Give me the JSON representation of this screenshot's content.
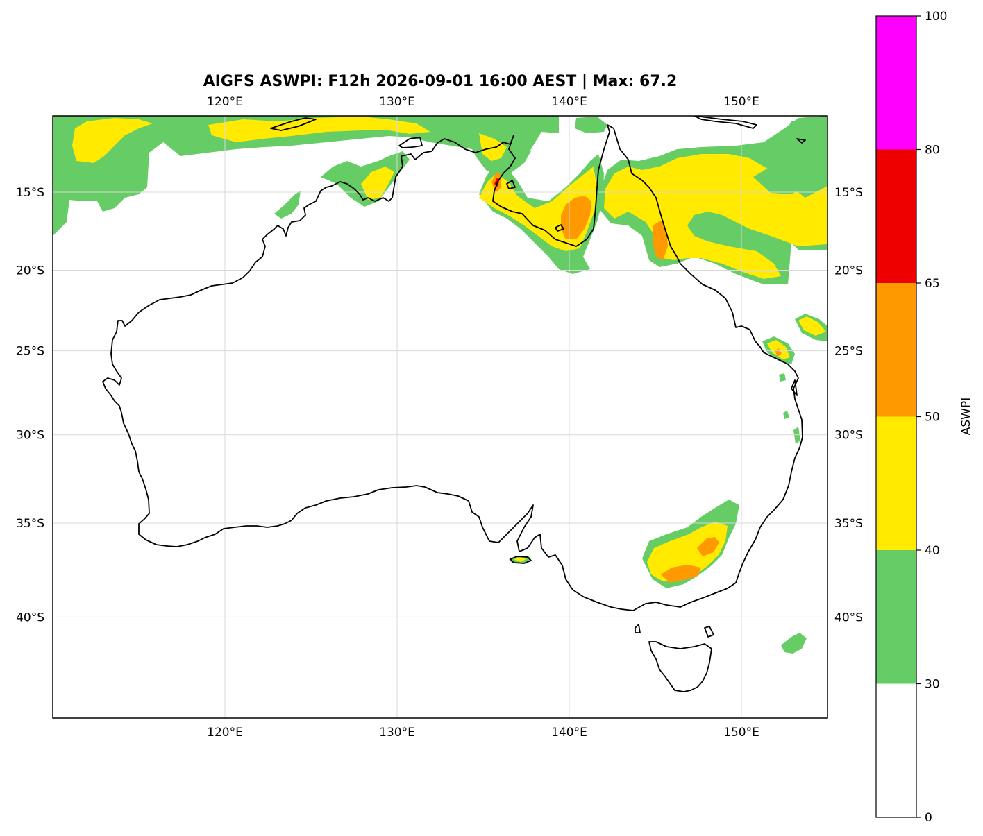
{
  "title": "AIGFS ASWPI: F12h 2026-09-01 16:00 AEST | Max: 67.2",
  "map": {
    "lon_range": [
      110,
      155
    ],
    "lat_range": [
      -45,
      -10
    ],
    "lon_ticks": [
      {
        "value": 120,
        "label": "120°E"
      },
      {
        "value": 130,
        "label": "130°E"
      },
      {
        "value": 140,
        "label": "140°E"
      },
      {
        "value": 150,
        "label": "150°E"
      }
    ],
    "lat_ticks": [
      {
        "value": -15,
        "label": "15°S"
      },
      {
        "value": -20,
        "label": "20°S"
      },
      {
        "value": -25,
        "label": "25°S"
      },
      {
        "value": -30,
        "label": "30°S"
      },
      {
        "value": -35,
        "label": "35°S"
      },
      {
        "value": -40,
        "label": "40°S"
      }
    ],
    "gridlines": true,
    "colors": {
      "coastline": "#000000",
      "gridline": "#d9d9d9"
    }
  },
  "colorbar": {
    "label": "ASWPI",
    "levels": [
      {
        "from": 0,
        "to": 30,
        "color": "#ffffff"
      },
      {
        "from": 30,
        "to": 40,
        "color": "#66cc66"
      },
      {
        "from": 40,
        "to": 50,
        "color": "#ffea00"
      },
      {
        "from": 50,
        "to": 65,
        "color": "#ff9900"
      },
      {
        "from": 65,
        "to": 80,
        "color": "#ee0000"
      },
      {
        "from": 80,
        "to": 100,
        "color": "#ff00ff"
      }
    ],
    "ticks": [
      {
        "value": 0,
        "label": "0"
      },
      {
        "value": 30,
        "label": "30"
      },
      {
        "value": 40,
        "label": "40"
      },
      {
        "value": 50,
        "label": "50"
      },
      {
        "value": 65,
        "label": "65"
      },
      {
        "value": 80,
        "label": "80"
      },
      {
        "value": 100,
        "label": "100"
      }
    ]
  }
}
